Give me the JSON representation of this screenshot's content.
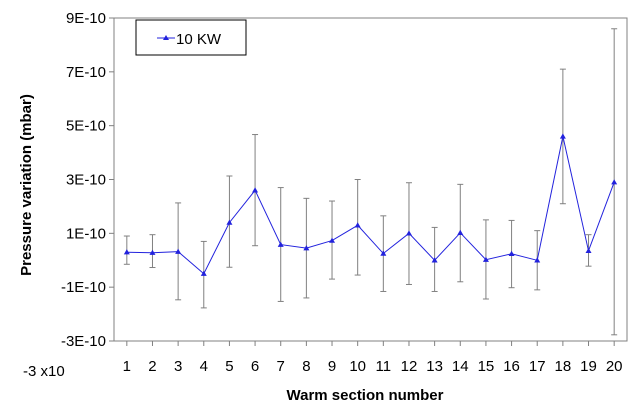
{
  "chart_data": {
    "type": "line",
    "title": "",
    "xlabel": "Warm section number",
    "ylabel": "Pressure variation (mbar)",
    "y_axis_extra_label": "-3 x10",
    "ylim": [
      -3e-10,
      9e-10
    ],
    "yticks": [
      -3e-10,
      -1e-10,
      1e-10,
      3e-10,
      5e-10,
      7e-10,
      9e-10
    ],
    "ytick_labels": [
      "-3E-10",
      "-1E-10",
      "1E-10",
      "3E-10",
      "5E-10",
      "7E-10",
      "9E-10"
    ],
    "xlim": [
      0.5,
      20.5
    ],
    "x": [
      1,
      2,
      3,
      4,
      5,
      6,
      7,
      8,
      9,
      10,
      11,
      12,
      13,
      14,
      15,
      16,
      17,
      18,
      19,
      20
    ],
    "xtick_labels": [
      "1",
      "2",
      "3",
      "4",
      "5",
      "6",
      "7",
      "8",
      "9",
      "10",
      "11",
      "12",
      "13",
      "14",
      "15",
      "16",
      "17",
      "18",
      "19",
      "20"
    ],
    "grid": false,
    "legend_position": "top-left",
    "colors": {
      "series": "#2222dd",
      "error_bars": "#808080",
      "axis": "#808080"
    },
    "series": [
      {
        "name": "10 KW",
        "marker": "triangle",
        "values": [
          3e-11,
          2.8e-11,
          3.2e-11,
          -5e-11,
          1.4e-10,
          2.6e-10,
          5.8e-11,
          4.5e-11,
          7.3e-11,
          1.3e-10,
          2.5e-11,
          1e-10,
          0,
          1.02e-10,
          2e-12,
          2.4e-11,
          0,
          4.6e-10,
          3.5e-11,
          2.9e-10
        ],
        "err_upper": [
          9e-11,
          9.5e-11,
          2.13e-10,
          7e-11,
          3.13e-10,
          4.67e-10,
          2.7e-10,
          2.3e-10,
          2.2e-10,
          3e-10,
          1.65e-10,
          2.88e-10,
          1.22e-10,
          2.82e-10,
          1.5e-10,
          1.48e-10,
          1.1e-10,
          7.1e-10,
          9.5e-11,
          8.6e-10
        ],
        "err_lower": [
          -1.5e-11,
          -2.7e-11,
          -1.47e-10,
          -1.77e-10,
          -2.6e-11,
          5.4e-11,
          -1.53e-10,
          -1.4e-10,
          -7e-11,
          -5.5e-11,
          -1.16e-10,
          -9e-11,
          -1.16e-10,
          -8e-11,
          -1.44e-10,
          -1.02e-10,
          -1.1e-10,
          2.1e-10,
          -2.2e-11,
          -2.77e-10
        ]
      }
    ]
  }
}
